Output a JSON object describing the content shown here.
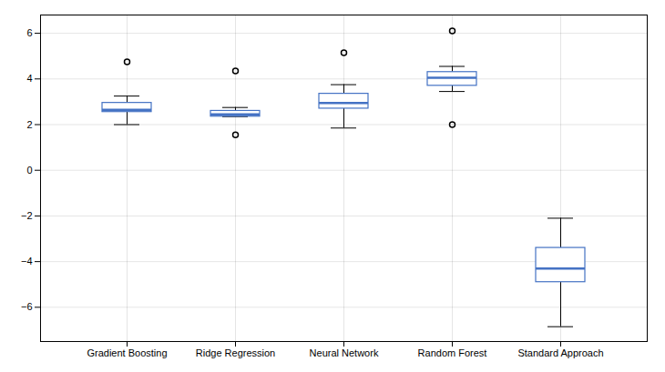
{
  "chart_data": {
    "type": "box",
    "categories": [
      "Gradient Boosting",
      "Ridge Regression",
      "Neural Network",
      "Random Forest",
      "Standard Approach"
    ],
    "boxes": [
      {
        "q1": 2.55,
        "median": 2.65,
        "q3": 2.95,
        "whisker_low": 2.0,
        "whisker_high": 3.25,
        "outliers": [
          4.75
        ]
      },
      {
        "q1": 2.35,
        "median": 2.45,
        "q3": 2.6,
        "whisker_low": 2.35,
        "whisker_high": 2.75,
        "outliers": [
          4.35,
          1.55
        ]
      },
      {
        "q1": 2.7,
        "median": 2.95,
        "q3": 3.35,
        "whisker_low": 1.85,
        "whisker_high": 3.75,
        "outliers": [
          5.15
        ]
      },
      {
        "q1": 3.7,
        "median": 4.05,
        "q3": 4.3,
        "whisker_low": 3.45,
        "whisker_high": 4.55,
        "outliers": [
          6.1,
          2.0
        ]
      },
      {
        "q1": -4.9,
        "median": -4.3,
        "q3": -3.4,
        "whisker_low": -6.85,
        "whisker_high": -2.1,
        "outliers": []
      }
    ],
    "color": "#4472C4",
    "ylim": [
      -7.5,
      6.8
    ],
    "yticks": [
      -6,
      -4,
      -2,
      0,
      2,
      4,
      6
    ],
    "grid": true
  }
}
